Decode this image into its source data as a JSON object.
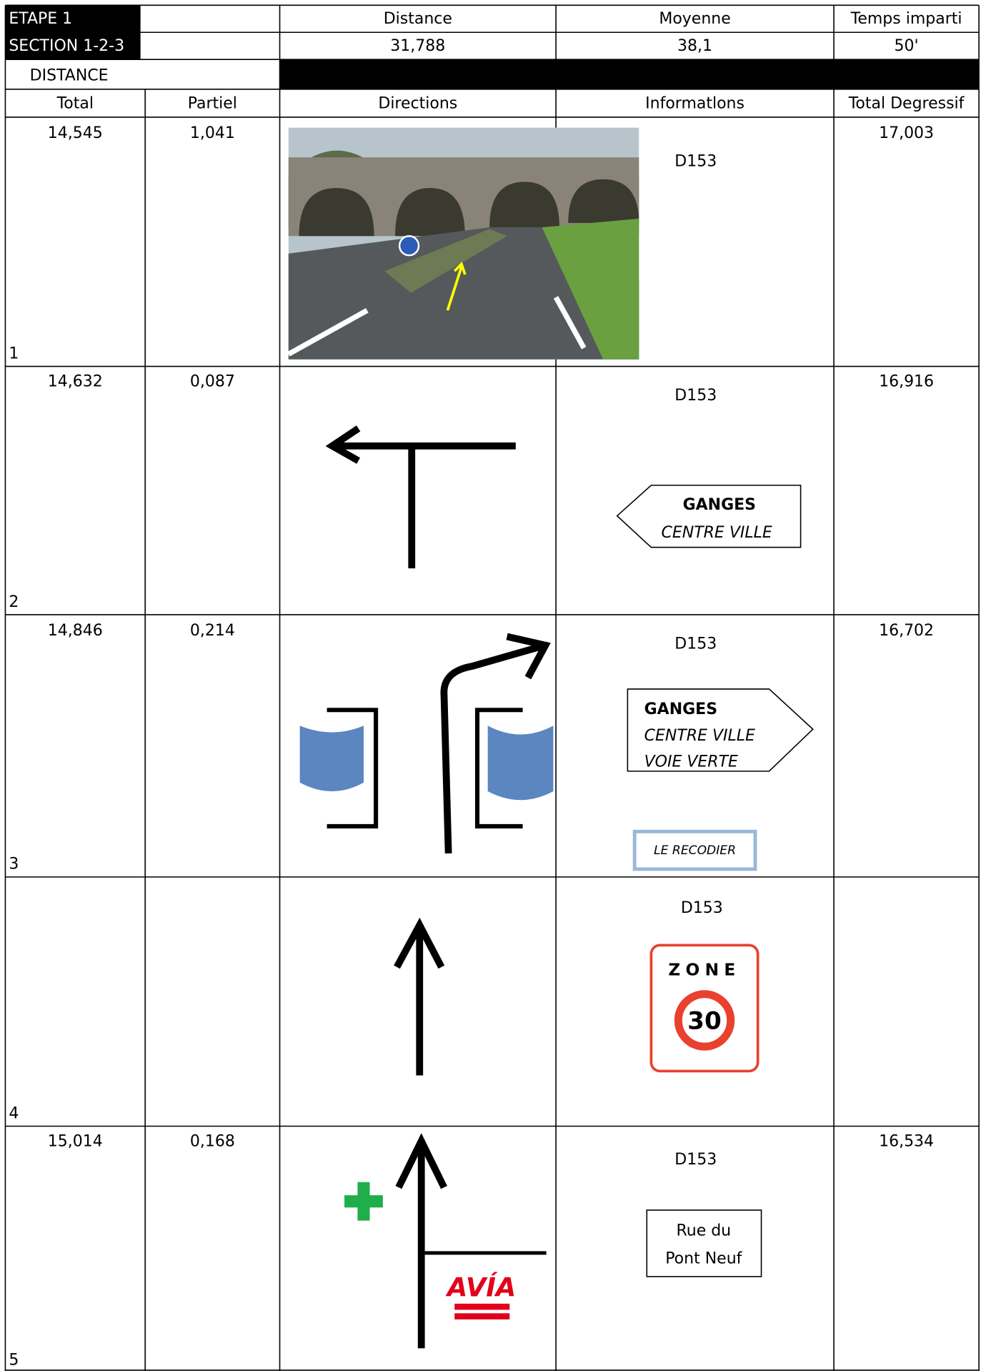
{
  "header": {
    "etape": "ETAPE 1",
    "section": "SECTION 1-2-3",
    "distance_label": "Distance",
    "moyenne_label": "Moyenne",
    "temps_label": "Temps imparti",
    "distance": "31,788",
    "moyenne": "38,1",
    "temps": "50'",
    "distance_group": "DISTANCE"
  },
  "columns": [
    "Total",
    "Partiel",
    "Directions",
    "Informatlons",
    "Total Degressif"
  ],
  "rows": [
    {
      "number": "1",
      "total": "14,545",
      "partiel": "1,041",
      "road": "D153",
      "degressif": "17,003"
    },
    {
      "number": "2",
      "total": "14,632",
      "partiel": "0,087",
      "road": "D153",
      "degressif": "16,916",
      "sign": [
        "GANGES",
        "CENTRE VILLE"
      ]
    },
    {
      "number": "3",
      "total": "14,846",
      "partiel": "0,214",
      "road": "D153",
      "degressif": "16,702",
      "sign": [
        "GANGES",
        "CENTRE VILLE",
        "VOIE VERTE"
      ],
      "place": "LE RECODIER"
    },
    {
      "number": "4",
      "road": "D153",
      "zone": "ZONE",
      "speed": "30"
    },
    {
      "number": "5",
      "total": "15,014",
      "partiel": "0,168",
      "road": "D153",
      "degressif": "16,534",
      "sign": [
        "Rue du",
        "Pont Neuf"
      ],
      "logo": "AVÍA"
    }
  ]
}
